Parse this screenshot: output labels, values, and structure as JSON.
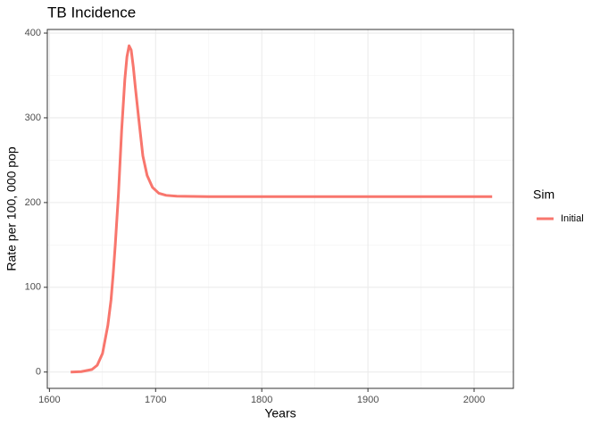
{
  "chart_data": {
    "type": "line",
    "title": "TB Incidence",
    "x_label": "Years",
    "y_label": "Rate per 100, 000 pop",
    "legend_title": "Sim",
    "legend_position": "right",
    "grid": true,
    "x": [
      1620,
      1630,
      1640,
      1645,
      1650,
      1655,
      1658,
      1660,
      1662,
      1665,
      1668,
      1671,
      1673,
      1675,
      1677,
      1679,
      1681,
      1684,
      1688,
      1692,
      1697,
      1703,
      1710,
      1720,
      1750,
      1800,
      1900,
      2017
    ],
    "series": [
      {
        "name": "Initial",
        "color": "#F8766D",
        "values": [
          0,
          0.5,
          3,
          8,
          22,
          55,
          85,
          115,
          150,
          210,
          285,
          345,
          372,
          385,
          380,
          360,
          335,
          300,
          255,
          232,
          218,
          211,
          208.5,
          207.5,
          207,
          207,
          207,
          207
        ]
      }
    ],
    "xlim": [
      1598,
      2037
    ],
    "xticks": [
      1600,
      1700,
      1800,
      1900,
      2000
    ],
    "ylim": [
      -19.25,
      404.25
    ],
    "yticks": [
      0,
      100,
      200,
      300,
      400
    ]
  }
}
